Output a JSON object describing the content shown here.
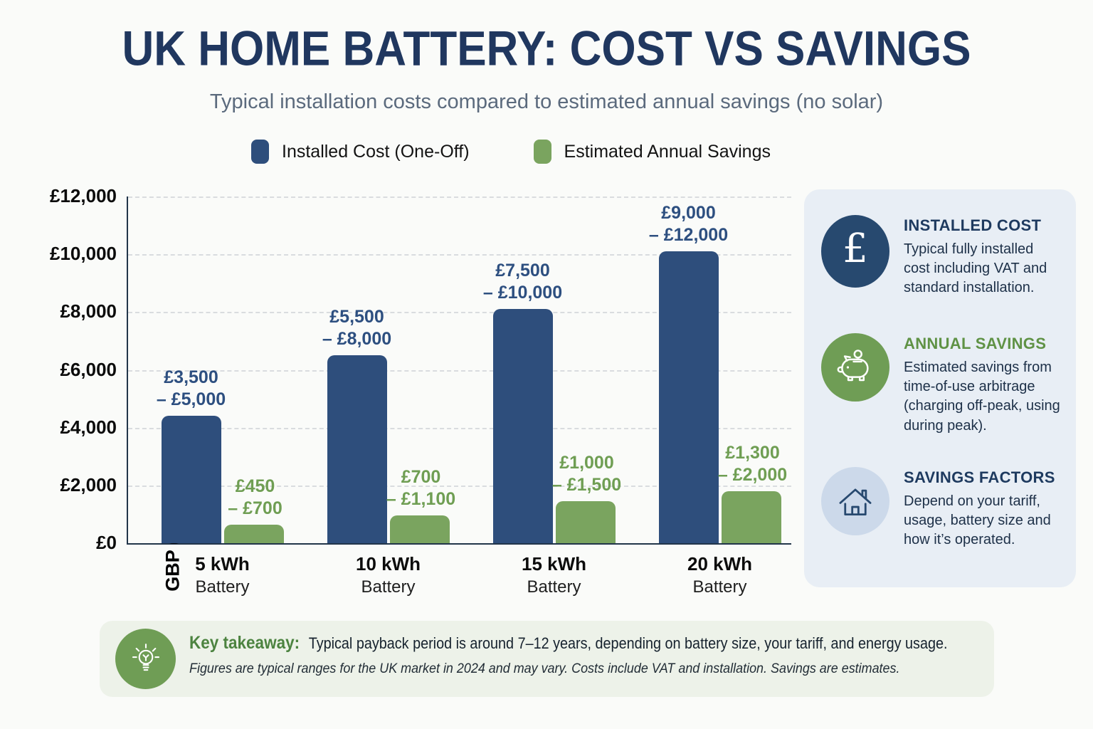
{
  "header": {
    "title": "UK HOME BATTERY: COST VS SAVINGS",
    "subtitle": "Typical installation costs compared to estimated annual savings (no solar)"
  },
  "chart_data": {
    "type": "bar",
    "title": "UK HOME BATTERY: COST VS SAVINGS",
    "ylabel": "GBP (£)",
    "ylim": [
      0,
      12000
    ],
    "grid": true,
    "legend_position": "top",
    "yticks": [
      {
        "v": 0,
        "label": "£0"
      },
      {
        "v": 2000,
        "label": "£2,000"
      },
      {
        "v": 4000,
        "label": "£4,000"
      },
      {
        "v": 6000,
        "label": "£6,000"
      },
      {
        "v": 8000,
        "label": "£8,000"
      },
      {
        "v": 10000,
        "label": "£10,000"
      },
      {
        "v": 12000,
        "label": "£12,000"
      }
    ],
    "categories": [
      "5 kWh",
      "10 kWh",
      "15 kWh",
      "20 kWh"
    ],
    "category_sublabel": "Battery",
    "series": [
      {
        "name": "Installed Cost (One-Off)",
        "color": "#2e4e7c",
        "label_color": "#2d4f80",
        "values": [
          4400,
          6500,
          8100,
          10100
        ],
        "range_labels": [
          "£3,500\n– £5,000",
          "£5,500\n– £8,000",
          "£7,500\n– £10,000",
          "£9,000\n– £12,000"
        ]
      },
      {
        "name": "Estimated Annual Savings",
        "color": "#7aa45f",
        "label_color": "#6f9e53",
        "values": [
          650,
          950,
          1450,
          1800
        ],
        "range_labels": [
          "£450\n– £700",
          "£700\n– £1,100",
          "£1,000\n– £1,500",
          "£1,300\n– £2,000"
        ]
      }
    ]
  },
  "sidebar": {
    "items": [
      {
        "heading": "INSTALLED COST",
        "body": "Typical fully installed cost including VAT and standard installation.",
        "icon": "pound-icon",
        "icon_bg": "#27496f",
        "heading_color": "#1e3a5f",
        "pound_symbol": "£"
      },
      {
        "heading": "ANNUAL SAVINGS",
        "body": "Estimated savings from time-of-use arbitrage (charging off-peak, using during peak).",
        "icon": "piggy-bank-icon",
        "icon_bg": "#6f9d55",
        "heading_color": "#5f9245"
      },
      {
        "heading": "SAVINGS FACTORS",
        "body": "Depend on your tariff, usage, battery size and how it’s operated.",
        "icon": "house-icon",
        "icon_bg": "#ccd9ea",
        "heading_color": "#1e3a5f"
      }
    ]
  },
  "takeaway": {
    "label": "Key takeaway:",
    "text": "Typical payback period is around 7–12 years, depending on battery size, your tariff, and energy usage.",
    "note": "Figures are typical ranges for the UK market in 2024 and may vary. Costs include VAT and installation. Savings are estimates.",
    "icon": "lightbulb-icon",
    "icon_bg": "#6f9d55"
  }
}
